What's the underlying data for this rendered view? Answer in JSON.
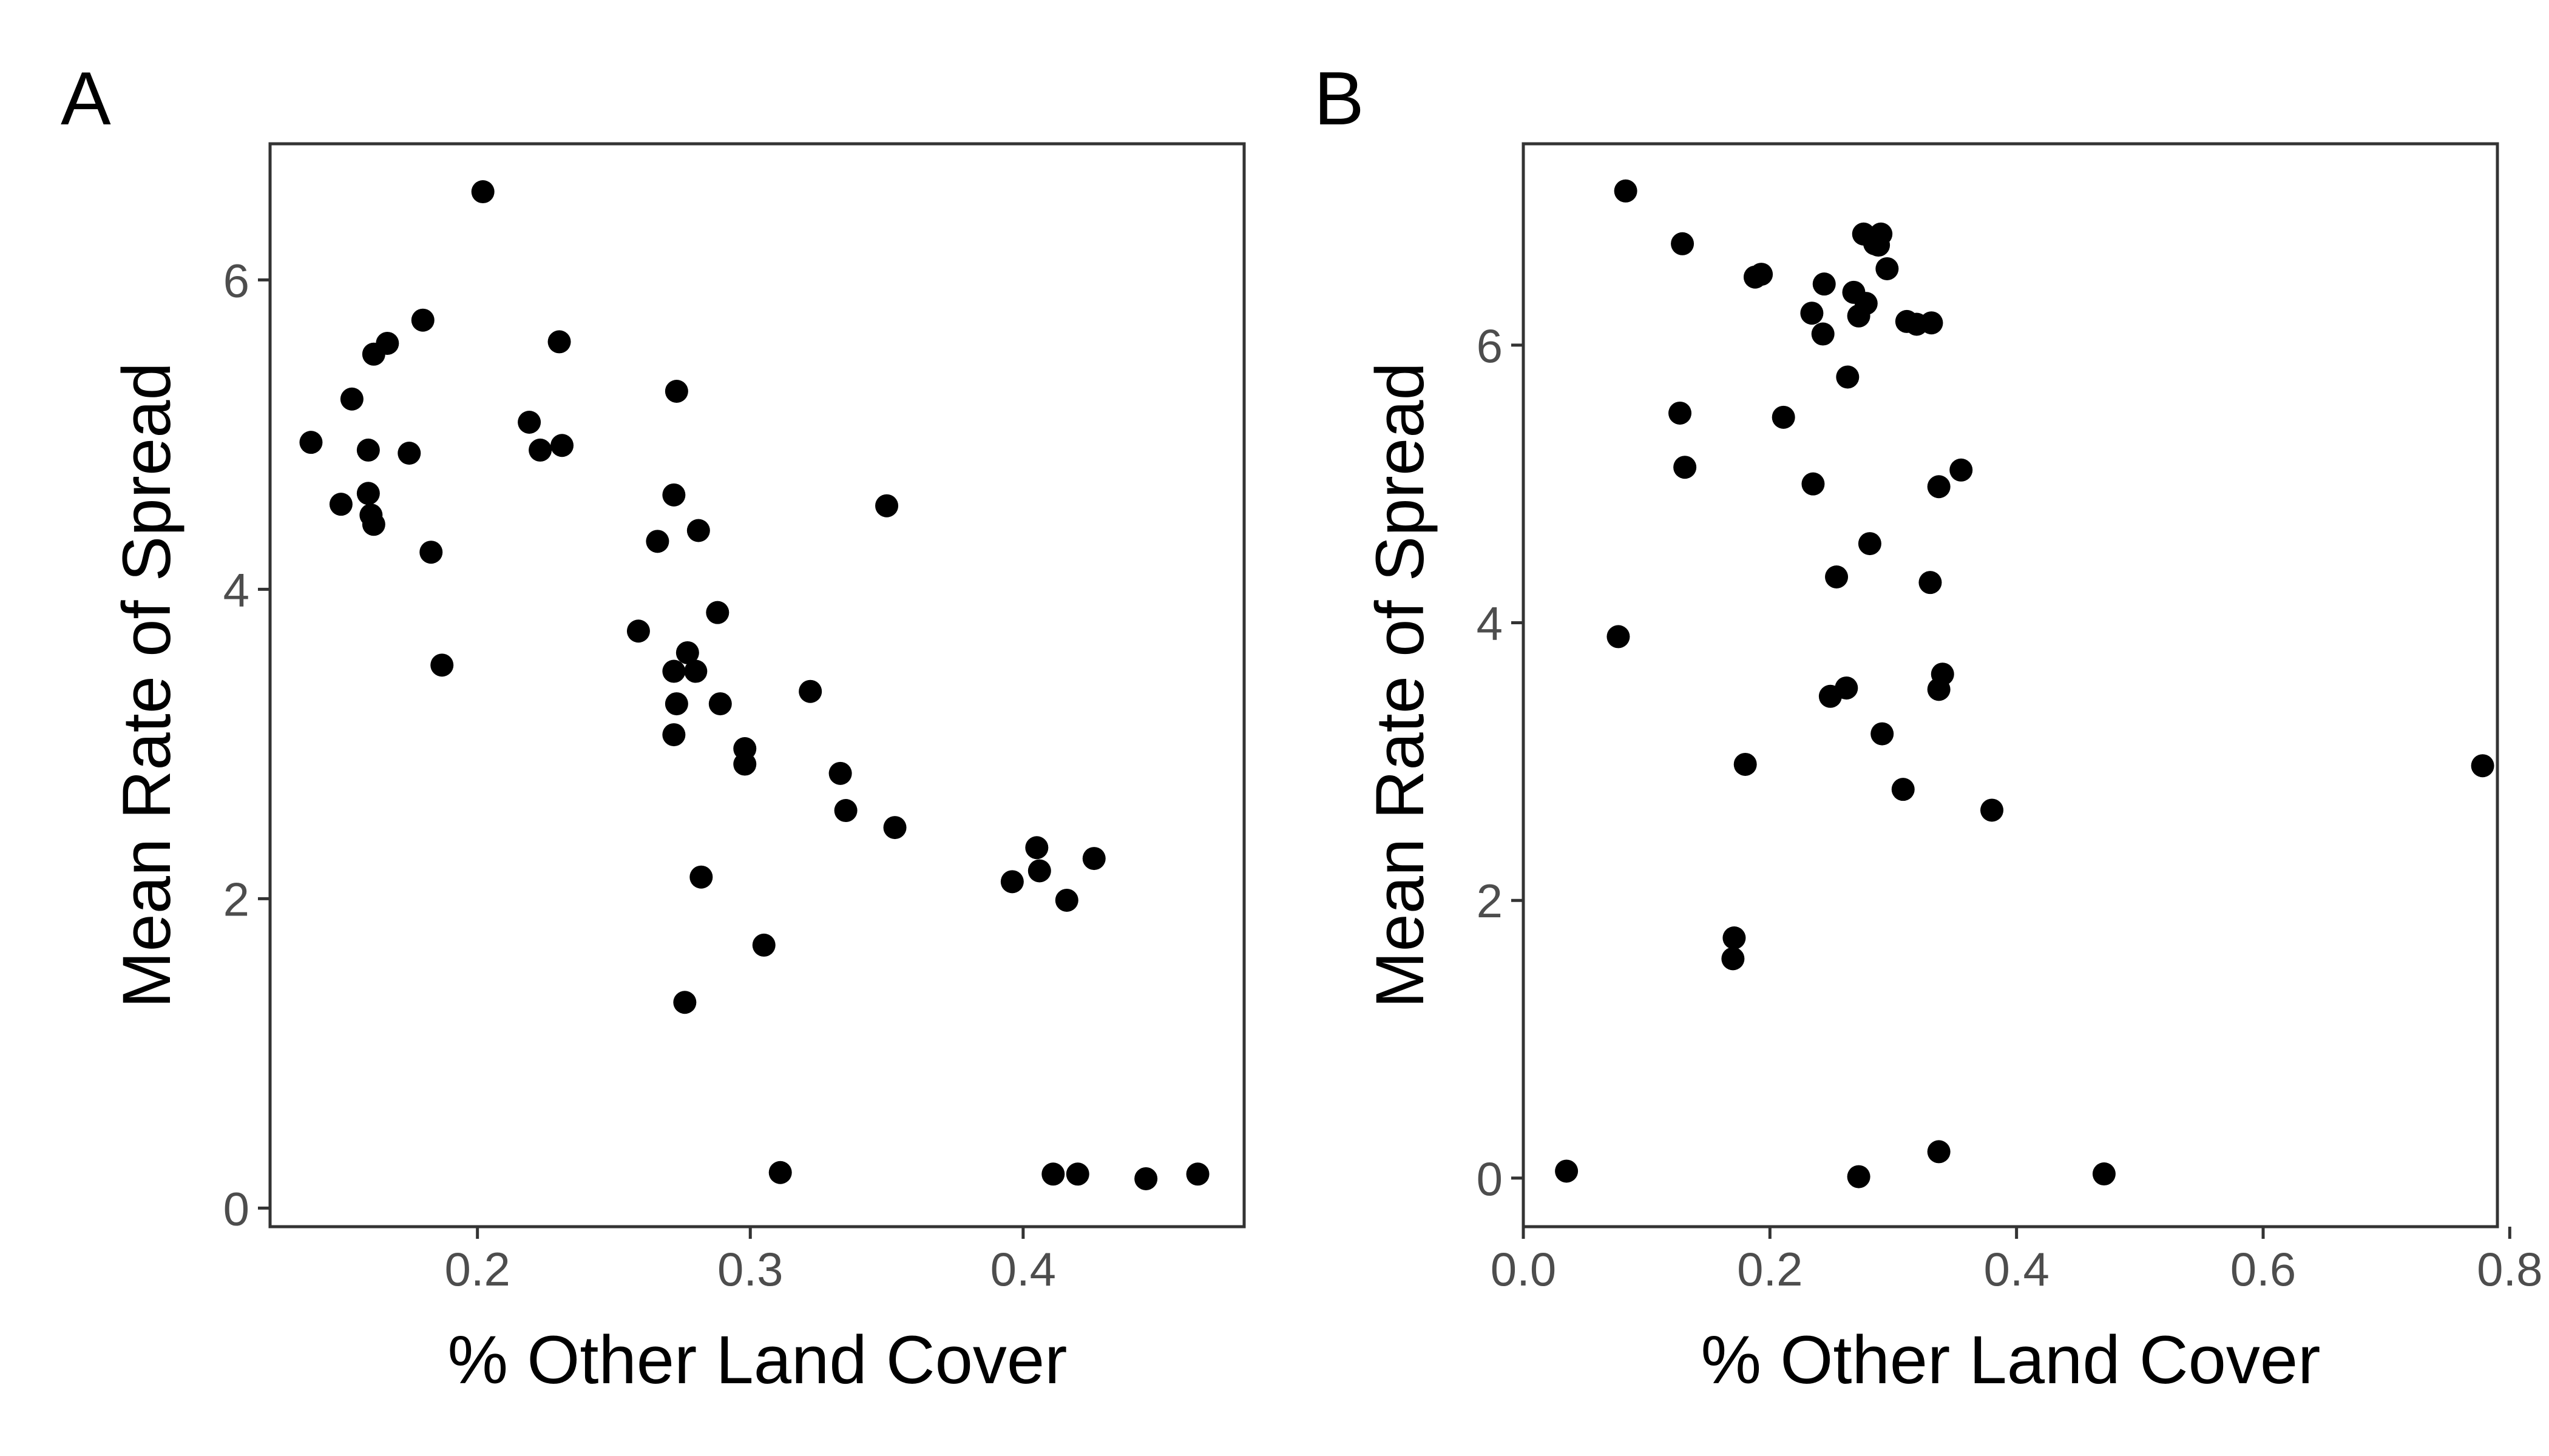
{
  "chart_data": [
    {
      "type": "scatter",
      "panel_label": "A",
      "xlabel": "% Other Land Cover",
      "ylabel": "Mean Rate of Spread",
      "xlim": [
        0.124,
        0.481
      ],
      "ylim": [
        -0.12,
        6.88
      ],
      "xticks": [
        0.2,
        0.3,
        0.4
      ],
      "xtick_labels": [
        "0.2",
        "0.3",
        "0.4"
      ],
      "yticks": [
        0,
        2,
        4,
        6
      ],
      "ytick_labels": [
        "0",
        "2",
        "4",
        "6"
      ],
      "grid": false,
      "x": [
        0.202,
        0.18,
        0.167,
        0.23,
        0.162,
        0.154,
        0.219,
        0.273,
        0.139,
        0.16,
        0.231,
        0.175,
        0.223,
        0.16,
        0.15,
        0.161,
        0.162,
        0.272,
        0.281,
        0.266,
        0.183,
        0.35,
        0.288,
        0.259,
        0.277,
        0.187,
        0.272,
        0.28,
        0.322,
        0.273,
        0.289,
        0.272,
        0.298,
        0.298,
        0.333,
        0.335,
        0.353,
        0.405,
        0.426,
        0.406,
        0.396,
        0.416,
        0.282,
        0.305,
        0.276,
        0.311,
        0.411,
        0.42,
        0.445,
        0.464
      ],
      "y": [
        6.57,
        5.74,
        5.59,
        5.6,
        5.52,
        5.23,
        5.08,
        5.28,
        4.95,
        4.9,
        4.93,
        4.88,
        4.9,
        4.62,
        4.55,
        4.48,
        4.42,
        4.61,
        4.38,
        4.31,
        4.24,
        4.54,
        3.85,
        3.73,
        3.59,
        3.51,
        3.47,
        3.47,
        3.34,
        3.26,
        3.26,
        3.06,
        2.97,
        2.87,
        2.81,
        2.57,
        2.46,
        2.33,
        2.26,
        2.18,
        2.11,
        1.99,
        2.14,
        1.7,
        1.33,
        0.23,
        0.22,
        0.22,
        0.19,
        0.22
      ]
    },
    {
      "type": "scatter",
      "panel_label": "B",
      "xlabel": "% Other Land Cover",
      "ylabel": "Mean Rate of Spread",
      "xlim": [
        0.0,
        0.79
      ],
      "ylim": [
        -0.35,
        7.45
      ],
      "xticks": [
        0.0,
        0.2,
        0.4,
        0.6,
        0.8
      ],
      "xtick_labels": [
        "0.0",
        "0.2",
        "0.4",
        "0.6",
        "0.8"
      ],
      "yticks": [
        0,
        2,
        4,
        6
      ],
      "ytick_labels": [
        "0",
        "2",
        "4",
        "6"
      ],
      "grid": false,
      "x": [
        0.083,
        0.129,
        0.276,
        0.285,
        0.29,
        0.288,
        0.193,
        0.188,
        0.244,
        0.295,
        0.268,
        0.278,
        0.234,
        0.272,
        0.243,
        0.311,
        0.319,
        0.331,
        0.263,
        0.127,
        0.211,
        0.131,
        0.235,
        0.355,
        0.337,
        0.281,
        0.254,
        0.33,
        0.077,
        0.34,
        0.337,
        0.262,
        0.249,
        0.291,
        0.18,
        0.308,
        0.38,
        0.778,
        0.171,
        0.17,
        0.035,
        0.272,
        0.337,
        0.471
      ],
      "y": [
        7.11,
        6.73,
        6.8,
        6.73,
        6.8,
        6.72,
        6.51,
        6.49,
        6.44,
        6.55,
        6.38,
        6.3,
        6.23,
        6.21,
        6.08,
        6.17,
        6.15,
        6.16,
        5.77,
        5.51,
        5.48,
        5.12,
        5.0,
        5.1,
        4.98,
        4.57,
        4.33,
        4.29,
        3.9,
        3.63,
        3.52,
        3.53,
        3.47,
        3.2,
        2.98,
        2.8,
        2.65,
        2.97,
        1.73,
        1.58,
        0.05,
        0.01,
        0.19,
        0.03
      ]
    }
  ]
}
